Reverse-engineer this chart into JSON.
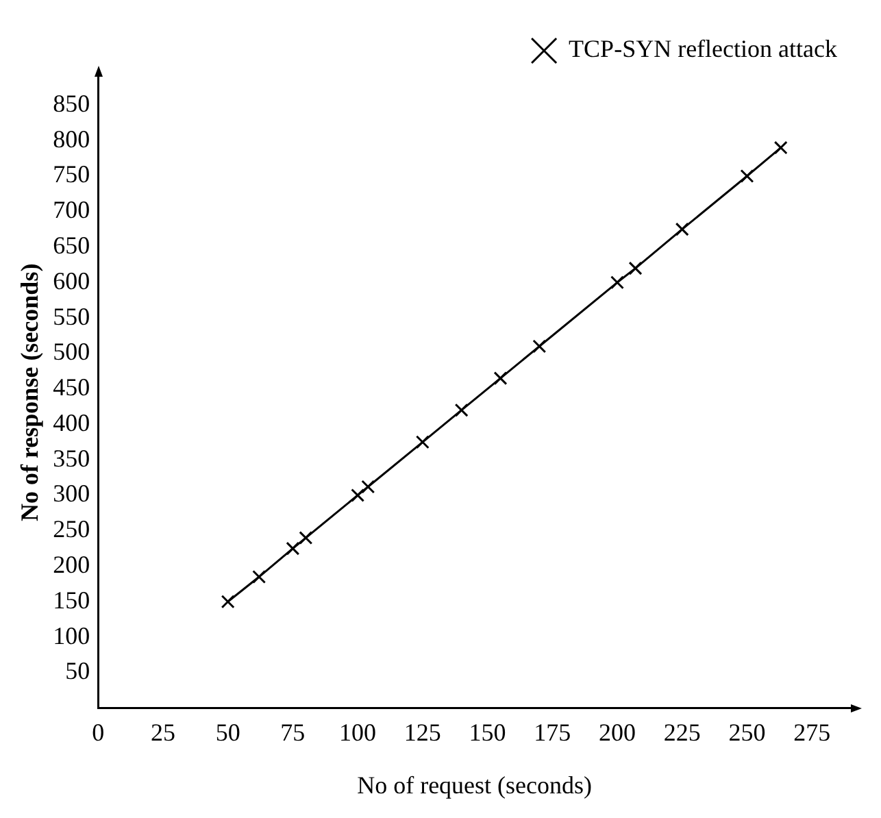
{
  "chart_data": {
    "type": "line",
    "xlabel": "No of request (seconds)",
    "ylabel": "No of response (seconds)",
    "x": [
      50,
      62,
      75,
      80,
      100,
      104,
      125,
      140,
      155,
      170,
      200,
      207,
      225,
      250,
      263
    ],
    "series": [
      {
        "name": "TCP-SYN reflection attack",
        "color": "#000000",
        "values": [
          150,
          185,
          225,
          240,
          300,
          312,
          375,
          420,
          465,
          510,
          600,
          620,
          675,
          750,
          790
        ]
      }
    ],
    "xlim": [
      0,
      290
    ],
    "xticks": [
      0,
      25,
      50,
      75,
      100,
      125,
      150,
      175,
      200,
      225,
      250,
      275
    ],
    "ylim": [
      0,
      890
    ],
    "yticks": [
      50,
      100,
      150,
      200,
      250,
      300,
      350,
      400,
      450,
      500,
      550,
      600,
      650,
      700,
      750,
      800,
      850
    ],
    "grid": false,
    "legend": "top right",
    "marker": "cross",
    "line_style": "solid"
  }
}
